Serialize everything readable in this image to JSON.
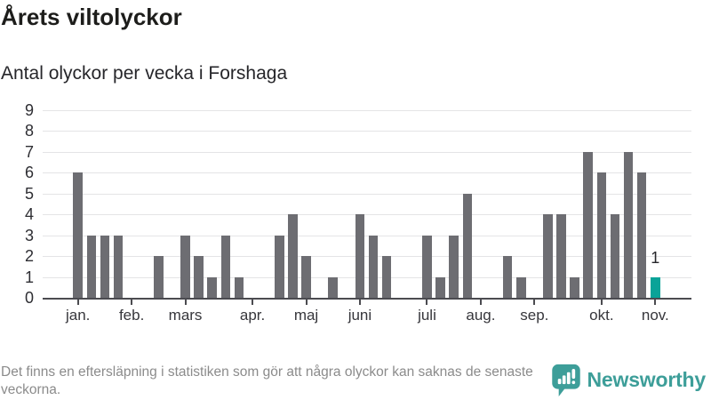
{
  "header": {
    "title": "Årets viltolyckor",
    "subtitle": "Antal olyckor per vecka i Forshaga"
  },
  "chart_data": {
    "type": "bar",
    "title": "Årets viltolyckor",
    "subtitle": "Antal olyckor per vecka i Forshaga",
    "x_unit": "vecka (weekly bars, January–November)",
    "ylim": [
      0,
      9
    ],
    "yticks": [
      0,
      1,
      2,
      3,
      4,
      5,
      6,
      7,
      8,
      9
    ],
    "grid": true,
    "legend_position": "none",
    "values": [
      6,
      3,
      3,
      3,
      0,
      0,
      2,
      0,
      3,
      2,
      1,
      3,
      1,
      0,
      0,
      3,
      4,
      2,
      0,
      1,
      0,
      4,
      3,
      2,
      0,
      0,
      3,
      1,
      3,
      5,
      0,
      0,
      2,
      1,
      0,
      4,
      4,
      1,
      7,
      6,
      4,
      7,
      6,
      1
    ],
    "highlight_index": 43,
    "highlight_label": "1",
    "month_ticks": [
      {
        "label": "jan.",
        "week": 1
      },
      {
        "label": "feb.",
        "week": 5
      },
      {
        "label": "mars",
        "week": 9
      },
      {
        "label": "apr.",
        "week": 14
      },
      {
        "label": "maj",
        "week": 18
      },
      {
        "label": "juni",
        "week": 22
      },
      {
        "label": "juli",
        "week": 27
      },
      {
        "label": "aug.",
        "week": 31
      },
      {
        "label": "sep.",
        "week": 35
      },
      {
        "label": "okt.",
        "week": 40
      },
      {
        "label": "nov.",
        "week": 44
      }
    ],
    "colors": {
      "bar": "#6d6d72",
      "highlight": "#0aa398",
      "grid": "#e4e4e6",
      "axis": "#4b4b50"
    }
  },
  "footer": {
    "note": "Det finns en eftersläpning i statistiken som gör att några olyckor kan saknas de senaste veckorna.",
    "brand": "Newsworthy",
    "brand_color": "#3d9e99"
  }
}
